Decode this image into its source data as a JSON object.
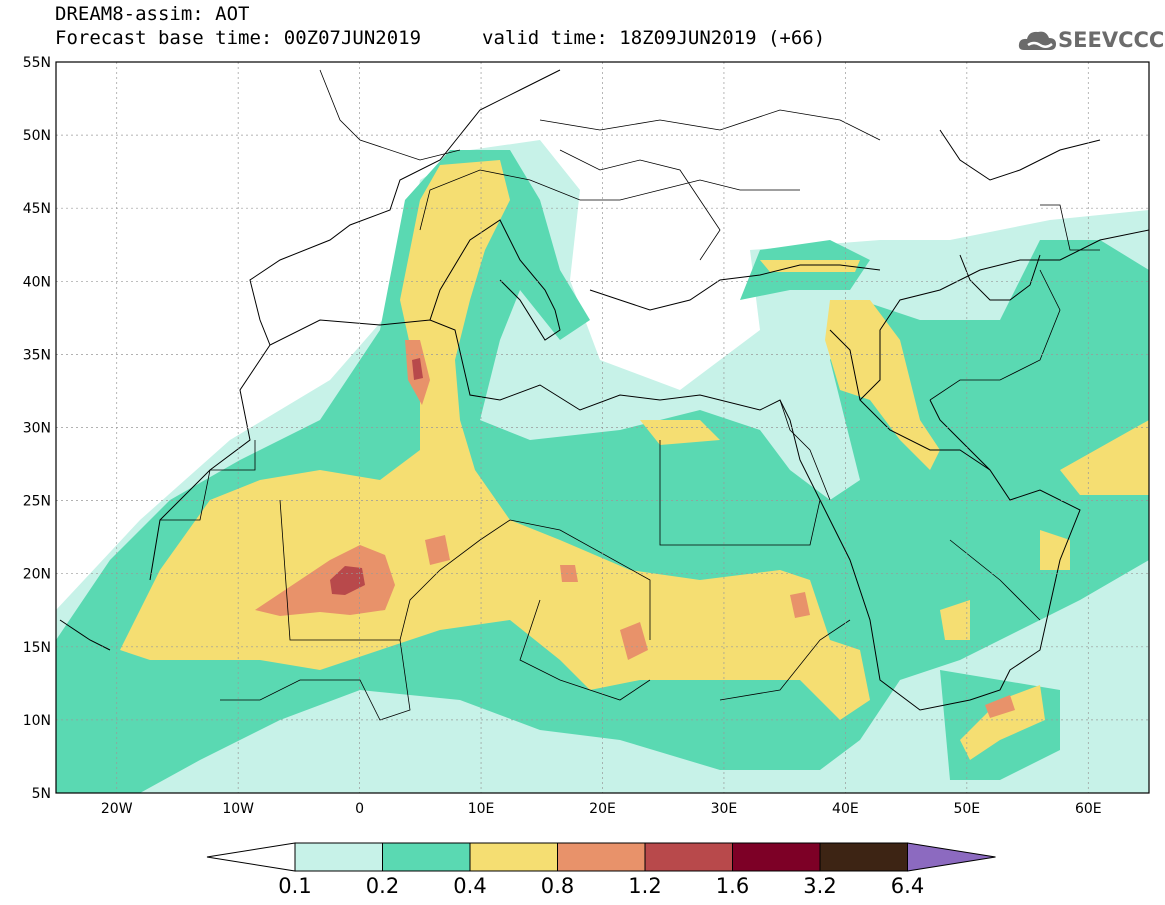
{
  "header": {
    "title": "DREAM8-assim: AOT",
    "base_time": "Forecast base time: 00Z07JUN2019",
    "valid_time": "valid time: 18Z09JUN2019 (+66)",
    "logo_text": "SEEVCCC"
  },
  "map": {
    "lat_labels": [
      "55N",
      "50N",
      "45N",
      "40N",
      "35N",
      "30N",
      "25N",
      "20N",
      "15N",
      "10N",
      "5N"
    ],
    "lon_labels": [
      "20W",
      "10W",
      "0",
      "10E",
      "20E",
      "30E",
      "40E",
      "50E",
      "60E"
    ],
    "lat_range": [
      5,
      55
    ],
    "lon_range": [
      -25,
      65
    ]
  },
  "colorbar": {
    "labels": [
      "0.1",
      "0.2",
      "0.4",
      "0.8",
      "1.2",
      "1.6",
      "3.2",
      "6.4"
    ],
    "colors": [
      "#c7f2e8",
      "#5ad9b2",
      "#f5de72",
      "#e8926a",
      "#b8494b",
      "#7d0026",
      "#3d2414",
      "#8c6ac0"
    ],
    "below_color": "#ffffff"
  }
}
